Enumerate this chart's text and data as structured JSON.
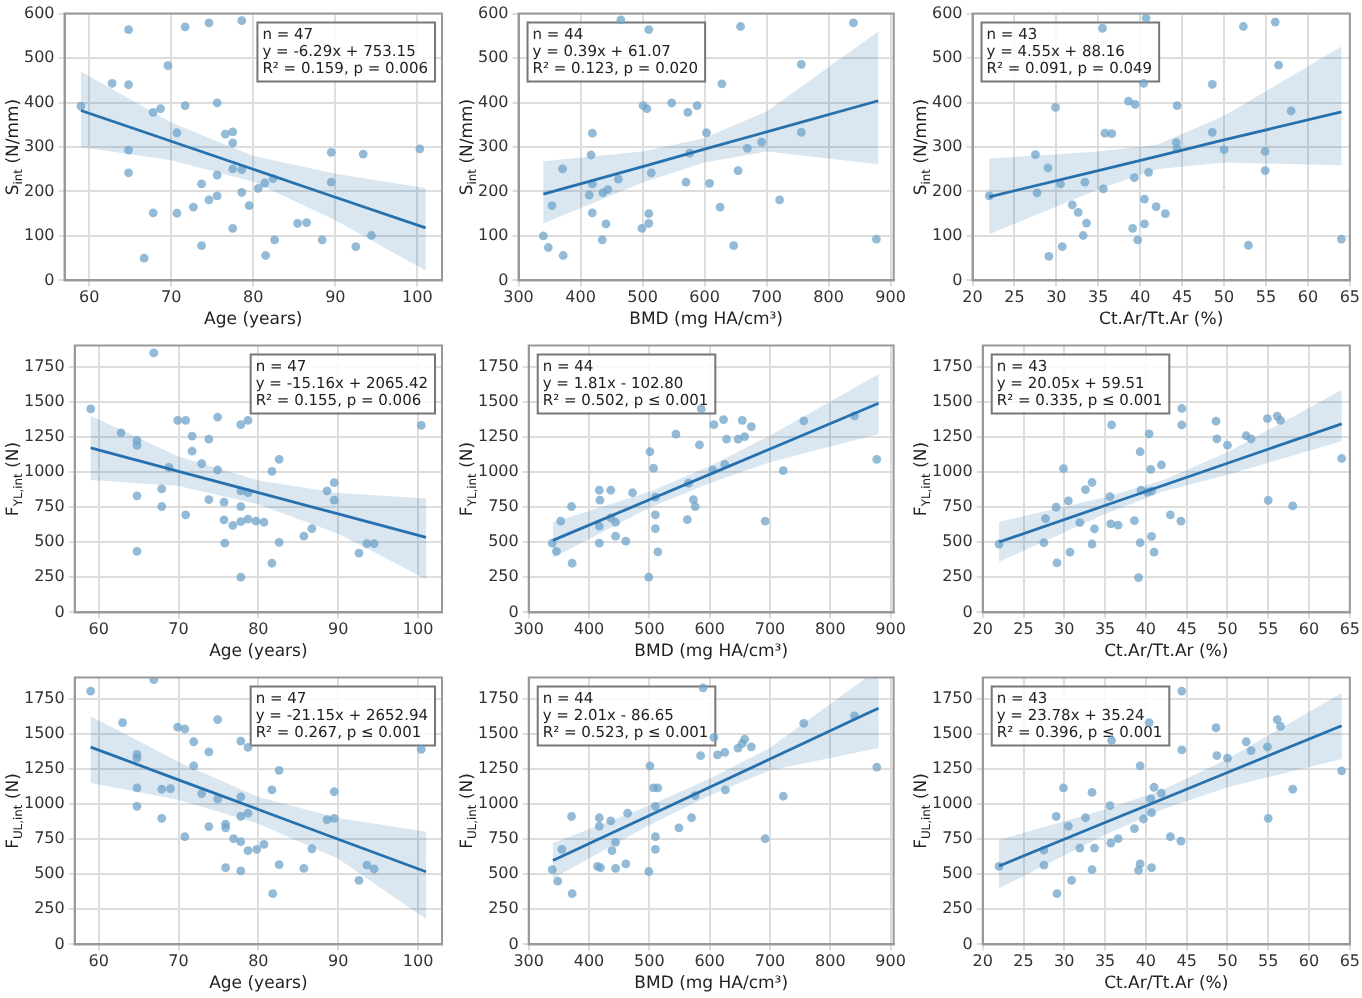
{
  "chart_data": [
    {
      "type": "scatter",
      "xlabel": "Age (years)",
      "ylabel": "S$_{int}$ (N/mm)",
      "xlim": [
        57,
        103
      ],
      "ylim": [
        0,
        600
      ],
      "xticks": [
        60,
        70,
        80,
        90,
        100
      ],
      "yticks": [
        0,
        100,
        200,
        300,
        400,
        500,
        600
      ],
      "grid": true,
      "marker": "circle",
      "annotations": [
        "n = 47",
        "y = -6.29x + 753.15",
        "R² = 0.159, p = 0.006"
      ],
      "series": [
        {
          "color": "#6fa3c8",
          "x": [
            59,
            62.8,
            64.8,
            64.8,
            64.8,
            64.8,
            67.8,
            68.7,
            67.8,
            66.7,
            69.6,
            71.7,
            71.7,
            70.7,
            70.7,
            72.7,
            74.6,
            75.6,
            73.7,
            73.7,
            74.6,
            75.6,
            75.6,
            76.6,
            77.5,
            77.5,
            78.6,
            77.5,
            78.6,
            77.5,
            78.6,
            79.5,
            80.6,
            81.4,
            82.4,
            81.5,
            82.6,
            85.4,
            86.5,
            88.4,
            89.5,
            89.5,
            92.5,
            93.4,
            94.4,
            100.3
          ],
          "values": [
            392,
            443,
            564,
            440,
            293,
            242,
            378,
            386,
            152,
            50,
            483,
            570,
            393,
            332,
            151,
            165,
            579,
            399,
            217,
            78,
            181,
            237,
            190,
            329,
            334,
            309,
            584,
            251,
            249,
            117,
            198,
            168,
            207,
            219,
            229,
            56,
            91,
            128,
            130,
            91,
            288,
            221,
            76,
            284,
            101,
            296
          ]
        },
        {
          "type": "line",
          "color": "#2671ad",
          "marker": "none",
          "x": [
            59,
            70,
            80,
            90,
            101
          ],
          "values": [
            382,
            313,
            250,
            187,
            118
          ],
          "lower": [
            300,
            270,
            222,
            135,
            22
          ],
          "upper": [
            470,
            355,
            280,
            240,
            208
          ]
        }
      ]
    },
    {
      "type": "scatter",
      "xlabel": "BMD (mg HA/cm³)",
      "ylabel": "S$_{int}$ (N/mm)",
      "xlim": [
        300,
        905
      ],
      "ylim": [
        0,
        600
      ],
      "xticks": [
        300,
        400,
        500,
        600,
        700,
        800,
        900
      ],
      "yticks": [
        0,
        100,
        200,
        300,
        400,
        500,
        600
      ],
      "grid": true,
      "marker": "circle",
      "annotations": [
        "n = 44",
        "y = 0.39x + 61.07",
        "R² = 0.123, p = 0.020"
      ],
      "series": [
        {
          "color": "#6fa3c8",
          "x": [
            340,
            348,
            354,
            371,
            372,
            419,
            417,
            419,
            414,
            419,
            436,
            444,
            441,
            435,
            461,
            465,
            499,
            501,
            507,
            510,
            510,
            510,
            514,
            547,
            573,
            576,
            570,
            588,
            603,
            608,
            625,
            628,
            658,
            756,
            840,
            654,
            669,
            692,
            756,
            721,
            647,
            877
          ],
          "values": [
            100,
            74,
            168,
            251,
            56,
            331,
            282,
            217,
            192,
            152,
            197,
            204,
            127,
            91,
            228,
            586,
            117,
            393,
            386,
            564,
            150,
            128,
            242,
            399,
            378,
            286,
            221,
            393,
            332,
            218,
            165,
            442,
            571,
            486,
            579,
            247,
            297,
            311,
            333,
            181,
            78,
            93
          ]
        },
        {
          "type": "line",
          "color": "#2671ad",
          "marker": "none",
          "x": [
            340,
            500,
            600,
            700,
            880
          ],
          "values": [
            194,
            256,
            295,
            334,
            404
          ],
          "lower": [
            128,
            220,
            265,
            290,
            261
          ],
          "upper": [
            268,
            290,
            320,
            380,
            560
          ]
        }
      ]
    },
    {
      "type": "scatter",
      "xlabel": "Ct.Ar/Tt.Ar (%)",
      "ylabel": "S$_{int}$ (N/mm)",
      "xlim": [
        20,
        65
      ],
      "ylim": [
        0,
        600
      ],
      "xticks": [
        20,
        25,
        30,
        35,
        40,
        45,
        50,
        55,
        60,
        65
      ],
      "yticks": [
        0,
        100,
        200,
        300,
        400,
        500,
        600
      ],
      "grid": true,
      "marker": "circle",
      "annotations": [
        "n = 43",
        "y = 4.55x + 88.16",
        "R² = 0.091, p = 0.049"
      ],
      "series": [
        {
          "color": "#6fa3c8",
          "x": [
            22,
            27.5,
            27.7,
            29,
            29.1,
            29.9,
            30.5,
            30.7,
            31.9,
            32.6,
            33.4,
            33.2,
            33.6,
            35.5,
            35.6,
            35.8,
            36.6,
            38.6,
            39.4,
            39.3,
            39.1,
            39.7,
            40.4,
            40.7,
            40.5,
            40.5,
            41,
            41.9,
            43,
            44.3,
            44.4,
            44.4,
            48.6,
            48.6,
            50,
            52.3,
            52.9,
            54.9,
            54.9,
            56.1,
            56.5,
            58,
            64
          ],
          "values": [
            190,
            283,
            197,
            253,
            54,
            389,
            217,
            76,
            170,
            153,
            221,
            101,
            129,
            567,
            206,
            331,
            330,
            403,
            396,
            231,
            117,
            91,
            443,
            590,
            183,
            127,
            243,
            166,
            150,
            310,
            296,
            393,
            441,
            333,
            294,
            571,
            79,
            290,
            247,
            581,
            484,
            381,
            93
          ]
        },
        {
          "type": "line",
          "color": "#2671ad",
          "marker": "none",
          "x": [
            22,
            35,
            42,
            50,
            64
          ],
          "values": [
            188,
            247,
            279,
            316,
            379
          ],
          "lower": [
            104,
            205,
            250,
            265,
            259
          ],
          "upper": [
            274,
            290,
            305,
            370,
            526
          ]
        }
      ]
    },
    {
      "type": "scatter",
      "xlabel": "Age (years)",
      "ylabel": "F$_{YL,int}$ (N)",
      "xlim": [
        57,
        103
      ],
      "ylim": [
        0,
        1900
      ],
      "xticks": [
        60,
        70,
        80,
        90,
        100
      ],
      "yticks": [
        0,
        250,
        500,
        750,
        1000,
        1250,
        1500,
        1750
      ],
      "grid": true,
      "marker": "circle",
      "annotations": [
        "n = 47",
        "y = -15.16x + 2065.42",
        "R² = 0.155, p = 0.006"
      ],
      "series": [
        {
          "color": "#6fa3c8",
          "x": [
            59,
            62.8,
            64.8,
            64.8,
            64.8,
            64.8,
            66.9,
            67.9,
            67.9,
            68.8,
            69.9,
            70.9,
            70.9,
            71.7,
            71.7,
            72.9,
            73.8,
            73.8,
            74.9,
            74.9,
            75.7,
            75.7,
            75.8,
            76.8,
            77.8,
            77.8,
            77.8,
            77.8,
            77.8,
            78.7,
            78.7,
            78.7,
            79.7,
            80.7,
            81.7,
            81.7,
            82.6,
            82.6,
            85.7,
            86.7,
            88.6,
            89.5,
            89.5,
            92.6,
            93.6,
            94.5,
            100.4
          ],
          "values": [
            1449,
            1279,
            1225,
            1189,
            830,
            435,
            1848,
            879,
            754,
            1032,
            1368,
            1368,
            695,
            1256,
            1148,
            1059,
            1234,
            803,
            1391,
            1014,
            785,
            659,
            493,
            619,
            1337,
            866,
            754,
            646,
            251,
            1368,
            852,
            664,
            650,
            642,
            1005,
            350,
            1090,
            498,
            543,
            597,
            866,
            924,
            799,
            422,
            489,
            489,
            1332
          ]
        },
        {
          "type": "line",
          "color": "#2671ad",
          "marker": "none",
          "x": [
            59,
            70,
            80,
            90,
            101
          ],
          "values": [
            1171,
            1004,
            853,
            701,
            534
          ],
          "lower": [
            942,
            900,
            770,
            560,
            238
          ],
          "upper": [
            1400,
            1110,
            940,
            850,
            812
          ]
        }
      ]
    },
    {
      "type": "scatter",
      "xlabel": "BMD (mg HA/cm³)",
      "ylabel": "F$_{YL,int}$ (N)",
      "xlim": [
        300,
        905
      ],
      "ylim": [
        0,
        1900
      ],
      "xticks": [
        300,
        400,
        500,
        600,
        700,
        800,
        900
      ],
      "yticks": [
        0,
        250,
        500,
        750,
        1000,
        1250,
        1500,
        1750
      ],
      "grid": true,
      "marker": "circle",
      "annotations": [
        "n = 44",
        "y = 1.81x - 102.80",
        "R² = 0.502, p ≤ 0.001"
      ],
      "series": [
        {
          "color": "#6fa3c8",
          "x": [
            339,
            346,
            353,
            371,
            372,
            417,
            418,
            417,
            417,
            436,
            436,
            444,
            444,
            461,
            472,
            499,
            501,
            507,
            510,
            510,
            514,
            510,
            544,
            563,
            573,
            576,
            565,
            586,
            583,
            607,
            623,
            628,
            625,
            605,
            647,
            654,
            658,
            669,
            756,
            840,
            877,
            722,
            692
          ],
          "values": [
            493,
            435,
            650,
            754,
            350,
            870,
            799,
            615,
            493,
            870,
            673,
            642,
            543,
            507,
            852,
            251,
            1144,
            1027,
            695,
            597,
            431,
            821,
            1270,
            660,
            803,
            754,
            920,
            1449,
            1193,
            1337,
            1373,
            1234,
            1054,
            1014,
            1234,
            1368,
            1252,
            1323,
            1364,
            1400,
            1090,
            1009,
            650
          ]
        },
        {
          "type": "line",
          "color": "#2671ad",
          "marker": "none",
          "x": [
            340,
            500,
            600,
            700,
            880
          ],
          "values": [
            513,
            802,
            983,
            1164,
            1490
          ],
          "lower": [
            390,
            745,
            920,
            1070,
            1270
          ],
          "upper": [
            640,
            860,
            1040,
            1260,
            1696
          ]
        }
      ]
    },
    {
      "type": "scatter",
      "xlabel": "Ct.Ar/Tt.Ar (%)",
      "ylabel": "F$_{YL,int}$ (N)",
      "xlim": [
        20,
        65
      ],
      "ylim": [
        0,
        1900
      ],
      "xticks": [
        20,
        25,
        30,
        35,
        40,
        45,
        50,
        55,
        60,
        65
      ],
      "yticks": [
        0,
        250,
        500,
        750,
        1000,
        1250,
        1500,
        1750
      ],
      "grid": true,
      "marker": "circle",
      "annotations": [
        "n = 43",
        "y = 20.05x + 59.51",
        "R² = 0.335, p ≤ 0.001"
      ],
      "series": [
        {
          "color": "#6fa3c8",
          "x": [
            22,
            27.5,
            27.7,
            29,
            29.1,
            29.9,
            30.5,
            30.7,
            31.9,
            32.6,
            33.4,
            33.4,
            33.7,
            35.6,
            35.8,
            35.7,
            36.6,
            38.6,
            39.3,
            39.3,
            39.4,
            39.1,
            40.2,
            40.4,
            40.6,
            40.7,
            40.7,
            41,
            41.9,
            43,
            44.3,
            44.4,
            44.4,
            48.6,
            48.7,
            50,
            52.3,
            52.9,
            54.9,
            55,
            56.1,
            56.5,
            58,
            64
          ],
          "values": [
            487,
            496,
            668,
            749,
            352,
            1024,
            794,
            429,
            640,
            875,
            925,
            487,
            595,
            825,
            1335,
            631,
            622,
            654,
            1144,
            496,
            871,
            248,
            857,
            1272,
            1019,
            866,
            541,
            429,
            1051,
            695,
            650,
            1452,
            1335,
            1362,
            1236,
            1191,
            1258,
            1236,
            1380,
            798,
            1398,
            1367,
            758,
            1096
          ]
        },
        {
          "type": "line",
          "color": "#2671ad",
          "marker": "none",
          "x": [
            22,
            35,
            42,
            50,
            64
          ],
          "values": [
            501,
            761,
            902,
            1062,
            1343
          ],
          "lower": [
            360,
            700,
            860,
            980,
            1218
          ],
          "upper": [
            645,
            820,
            940,
            1140,
            1583
          ]
        }
      ]
    },
    {
      "type": "scatter",
      "xlabel": "Age (years)",
      "ylabel": "F$_{UL,int}$ (N)",
      "xlim": [
        57,
        103
      ],
      "ylim": [
        0,
        1900
      ],
      "xticks": [
        60,
        70,
        80,
        90,
        100
      ],
      "yticks": [
        0,
        250,
        500,
        750,
        1000,
        1250,
        1500,
        1750
      ],
      "grid": true,
      "marker": "circle",
      "annotations": [
        "n = 47",
        "y = -21.15x + 2652.94",
        "R² = 0.267, p ≤ 0.001"
      ],
      "series": [
        {
          "color": "#6fa3c8",
          "x": [
            59,
            63,
            64.8,
            64.8,
            64.8,
            64.8,
            66.9,
            67.9,
            67.9,
            69,
            69.9,
            70.8,
            70.8,
            71.9,
            71.9,
            72.9,
            73.8,
            73.8,
            74.9,
            74.9,
            75.9,
            75.9,
            75.9,
            76.9,
            77.8,
            77.8,
            77.8,
            77.8,
            77.8,
            78.7,
            78.7,
            78.7,
            79.8,
            80.7,
            81.7,
            81.8,
            82.6,
            82.6,
            85.7,
            86.7,
            88.6,
            89.5,
            89.5,
            92.6,
            93.6,
            94.5,
            100.4
          ],
          "values": [
            1804,
            1579,
            1353,
            1326,
            1114,
            983,
            1885,
            1105,
            898,
            1110,
            1547,
            1534,
            767,
            1443,
            1272,
            1074,
            1371,
            839,
            1601,
            1037,
            857,
            830,
            546,
            753,
            1448,
            1051,
            911,
            731,
            523,
            1403,
            934,
            668,
            677,
            713,
            1100,
            361,
            1240,
            568,
            541,
            681,
            889,
            1087,
            898,
            456,
            564,
            537,
            1389
          ]
        },
        {
          "type": "line",
          "color": "#2671ad",
          "marker": "none",
          "x": [
            59,
            70,
            80,
            90,
            101
          ],
          "values": [
            1405,
            1172,
            961,
            749,
            517
          ],
          "lower": [
            1150,
            1030,
            860,
            610,
            180
          ],
          "upper": [
            1624,
            1300,
            1050,
            900,
            803
          ]
        }
      ]
    },
    {
      "type": "scatter",
      "xlabel": "BMD (mg HA/cm³)",
      "ylabel": "F$_{UL,int}$ (N)",
      "xlim": [
        300,
        905
      ],
      "ylim": [
        0,
        1900
      ],
      "xticks": [
        300,
        400,
        500,
        600,
        700,
        800,
        900
      ],
      "yticks": [
        0,
        250,
        500,
        750,
        1000,
        1250,
        1500,
        1750
      ],
      "grid": true,
      "marker": "circle",
      "annotations": [
        "n = 44",
        "y = 2.01x - 86.65",
        "R² = 0.523, p ≤ 0.001"
      ],
      "series": [
        {
          "color": "#6fa3c8",
          "x": [
            339,
            348,
            355,
            371,
            372,
            417,
            417,
            414,
            419,
            436,
            438,
            444,
            444,
            464,
            461,
            501,
            499,
            507,
            514,
            510,
            510,
            510,
            549,
            576,
            570,
            589,
            607,
            613,
            626,
            625,
            647,
            654,
            658,
            669,
            756,
            722,
            692,
            840,
            877,
            585
          ],
          "values": [
            532,
            451,
            677,
            911,
            361,
            902,
            843,
            555,
            546,
            880,
            668,
            726,
            541,
            934,
            573,
            1272,
            519,
            1114,
            1114,
            983,
            767,
            677,
            830,
            1060,
            902,
            1827,
            1475,
            1349,
            1100,
            1367,
            1398,
            1430,
            1461,
            1407,
            1574,
            1055,
            753,
            1628,
            1263,
            1344
          ]
        },
        {
          "type": "line",
          "color": "#2671ad",
          "marker": "none",
          "x": [
            340,
            500,
            600,
            700,
            860,
            880
          ],
          "values": [
            597,
            918,
            1119,
            1320,
            1642,
            1682
          ],
          "lower": [
            470,
            850,
            1060,
            1240,
            1380,
            1400
          ],
          "upper": [
            720,
            990,
            1180,
            1400,
            1900,
            1900
          ]
        }
      ]
    },
    {
      "type": "scatter",
      "xlabel": "Ct.Ar/Tt.Ar (%)",
      "ylabel": "F$_{UL,int}$ (N)",
      "xlim": [
        20,
        65
      ],
      "ylim": [
        0,
        1900
      ],
      "xticks": [
        20,
        25,
        30,
        35,
        40,
        45,
        50,
        55,
        60,
        65
      ],
      "yticks": [
        0,
        250,
        500,
        750,
        1000,
        1250,
        1500,
        1750
      ],
      "grid": true,
      "marker": "circle",
      "annotations": [
        "n = 43",
        "y = 23.78x + 35.24",
        "R² = 0.396, p ≤ 0.001"
      ],
      "series": [
        {
          "color": "#6fa3c8",
          "x": [
            22,
            27.5,
            27.5,
            29,
            29.1,
            29.9,
            30.5,
            30.9,
            31.9,
            32.6,
            33.4,
            33.4,
            33.7,
            35.6,
            35.8,
            35.7,
            36.6,
            38.6,
            39.3,
            39.3,
            39.1,
            39.7,
            40.4,
            40.6,
            40.7,
            40.7,
            41,
            41.9,
            43,
            44.3,
            44.4,
            44.4,
            48.6,
            48.7,
            50,
            52.3,
            52.9,
            54.9,
            55,
            56.1,
            56.5,
            58,
            64
          ],
          "values": [
            555,
            672,
            564,
            911,
            361,
            1114,
            843,
            456,
            686,
            902,
            1083,
            532,
            686,
            988,
            1452,
            722,
            753,
            825,
            1272,
            573,
            528,
            893,
            1579,
            1037,
            938,
            546,
            1119,
            1078,
            767,
            735,
            1804,
            1385,
            1543,
            1344,
            1326,
            1443,
            1380,
            1407,
            898,
            1601,
            1552,
            1105,
            1236
          ]
        },
        {
          "type": "line",
          "color": "#2671ad",
          "marker": "none",
          "x": [
            22,
            35,
            42,
            50,
            64
          ],
          "values": [
            558,
            868,
            1034,
            1224,
            1557
          ],
          "lower": [
            400,
            780,
            960,
            1120,
            1320
          ],
          "upper": [
            744,
            960,
            1100,
            1320,
            1790
          ]
        }
      ]
    }
  ]
}
